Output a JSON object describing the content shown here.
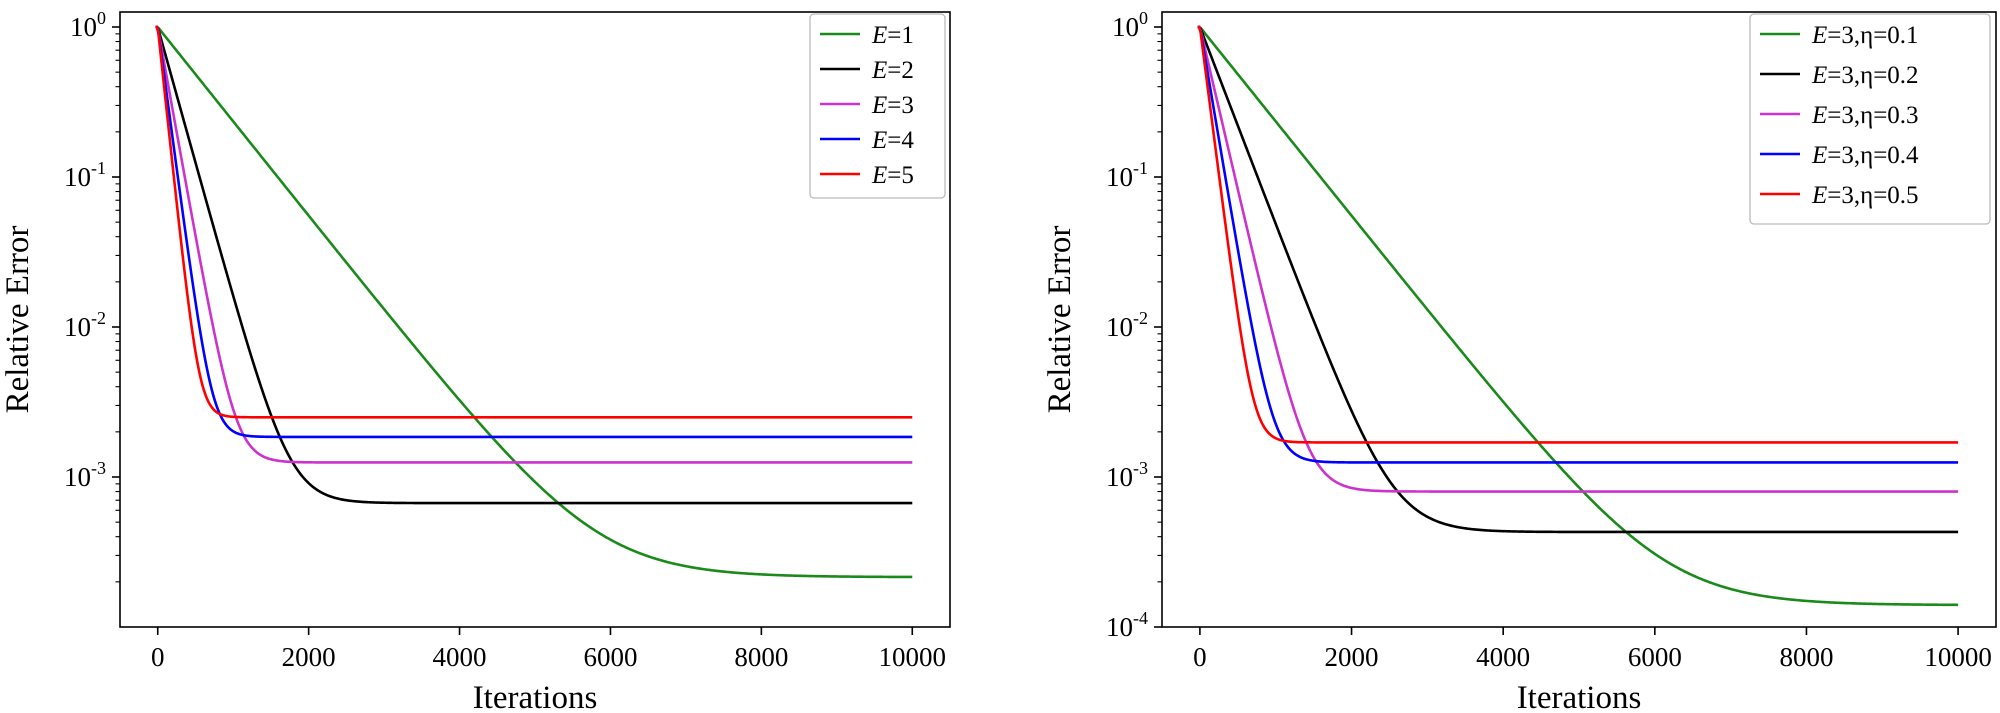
{
  "chart_data": [
    {
      "type": "line",
      "xlabel": "Iterations",
      "ylabel": "Relative Error",
      "yscale": "log",
      "xlim": [
        -500,
        10500
      ],
      "ylim_exp": [
        -4.0,
        0.1
      ],
      "xticks": [
        0,
        2000,
        4000,
        6000,
        8000,
        10000
      ],
      "xtick_labels": [
        "0",
        "2000",
        "4000",
        "6000",
        "8000",
        "10000"
      ],
      "yticks": [
        {
          "base": "10",
          "exp": "0"
        },
        {
          "base": "10",
          "exp": "-1"
        },
        {
          "base": "10",
          "exp": "-2"
        },
        {
          "base": "10",
          "exp": "-3"
        }
      ],
      "legend_position": "top-right",
      "grid": false,
      "series": [
        {
          "name": "E=1",
          "label_var": "E",
          "label_rest": "=1",
          "color": "#1a8a1a",
          "floor": 0.000215,
          "tau": 690
        },
        {
          "name": "E=2",
          "label_var": "E",
          "label_rest": "=2",
          "color": "#000000",
          "floor": 0.00067,
          "tau": 240
        },
        {
          "name": "E=3",
          "label_var": "E",
          "label_rest": "=3",
          "color": "#cc33cc",
          "floor": 0.00125,
          "tau": 155
        },
        {
          "name": "E=4",
          "label_var": "E",
          "label_rest": "=4",
          "color": "#0000ff",
          "floor": 0.00185,
          "tau": 115
        },
        {
          "name": "E=5",
          "label_var": "E",
          "label_rest": "=5",
          "color": "#ff0000",
          "floor": 0.0025,
          "tau": 92
        }
      ]
    },
    {
      "type": "line",
      "xlabel": "Iterations",
      "ylabel": "Relative Error",
      "yscale": "log",
      "xlim": [
        -500,
        10500
      ],
      "ylim_exp": [
        -4.0,
        0.1
      ],
      "xticks": [
        0,
        2000,
        4000,
        6000,
        8000,
        10000
      ],
      "xtick_labels": [
        "0",
        "2000",
        "4000",
        "6000",
        "8000",
        "10000"
      ],
      "yticks": [
        {
          "base": "10",
          "exp": "0"
        },
        {
          "base": "10",
          "exp": "-1"
        },
        {
          "base": "10",
          "exp": "-2"
        },
        {
          "base": "10",
          "exp": "-3"
        },
        {
          "base": "10",
          "exp": "-4"
        }
      ],
      "legend_position": "top-right",
      "grid": false,
      "series": [
        {
          "name": "E=3,η=0.1",
          "label_var": "E",
          "label_rest": "=3,η=0.1",
          "color": "#1a8a1a",
          "floor": 0.00014,
          "tau": 690
        },
        {
          "name": "E=3,η=0.2",
          "label_var": "E",
          "label_rest": "=3,η=0.2",
          "color": "#000000",
          "floor": 0.00043,
          "tau": 330
        },
        {
          "name": "E=3,η=0.3",
          "label_var": "E",
          "label_rest": "=3,η=0.3",
          "color": "#cc33cc",
          "floor": 0.0008,
          "tau": 200
        },
        {
          "name": "E=3,η=0.4",
          "label_var": "E",
          "label_rest": "=3,η=0.4",
          "color": "#0000ff",
          "floor": 0.00125,
          "tau": 145
        },
        {
          "name": "E=3,η=0.5",
          "label_var": "E",
          "label_rest": "=3,η=0.5",
          "color": "#ff0000",
          "floor": 0.0017,
          "tau": 110
        }
      ]
    }
  ]
}
